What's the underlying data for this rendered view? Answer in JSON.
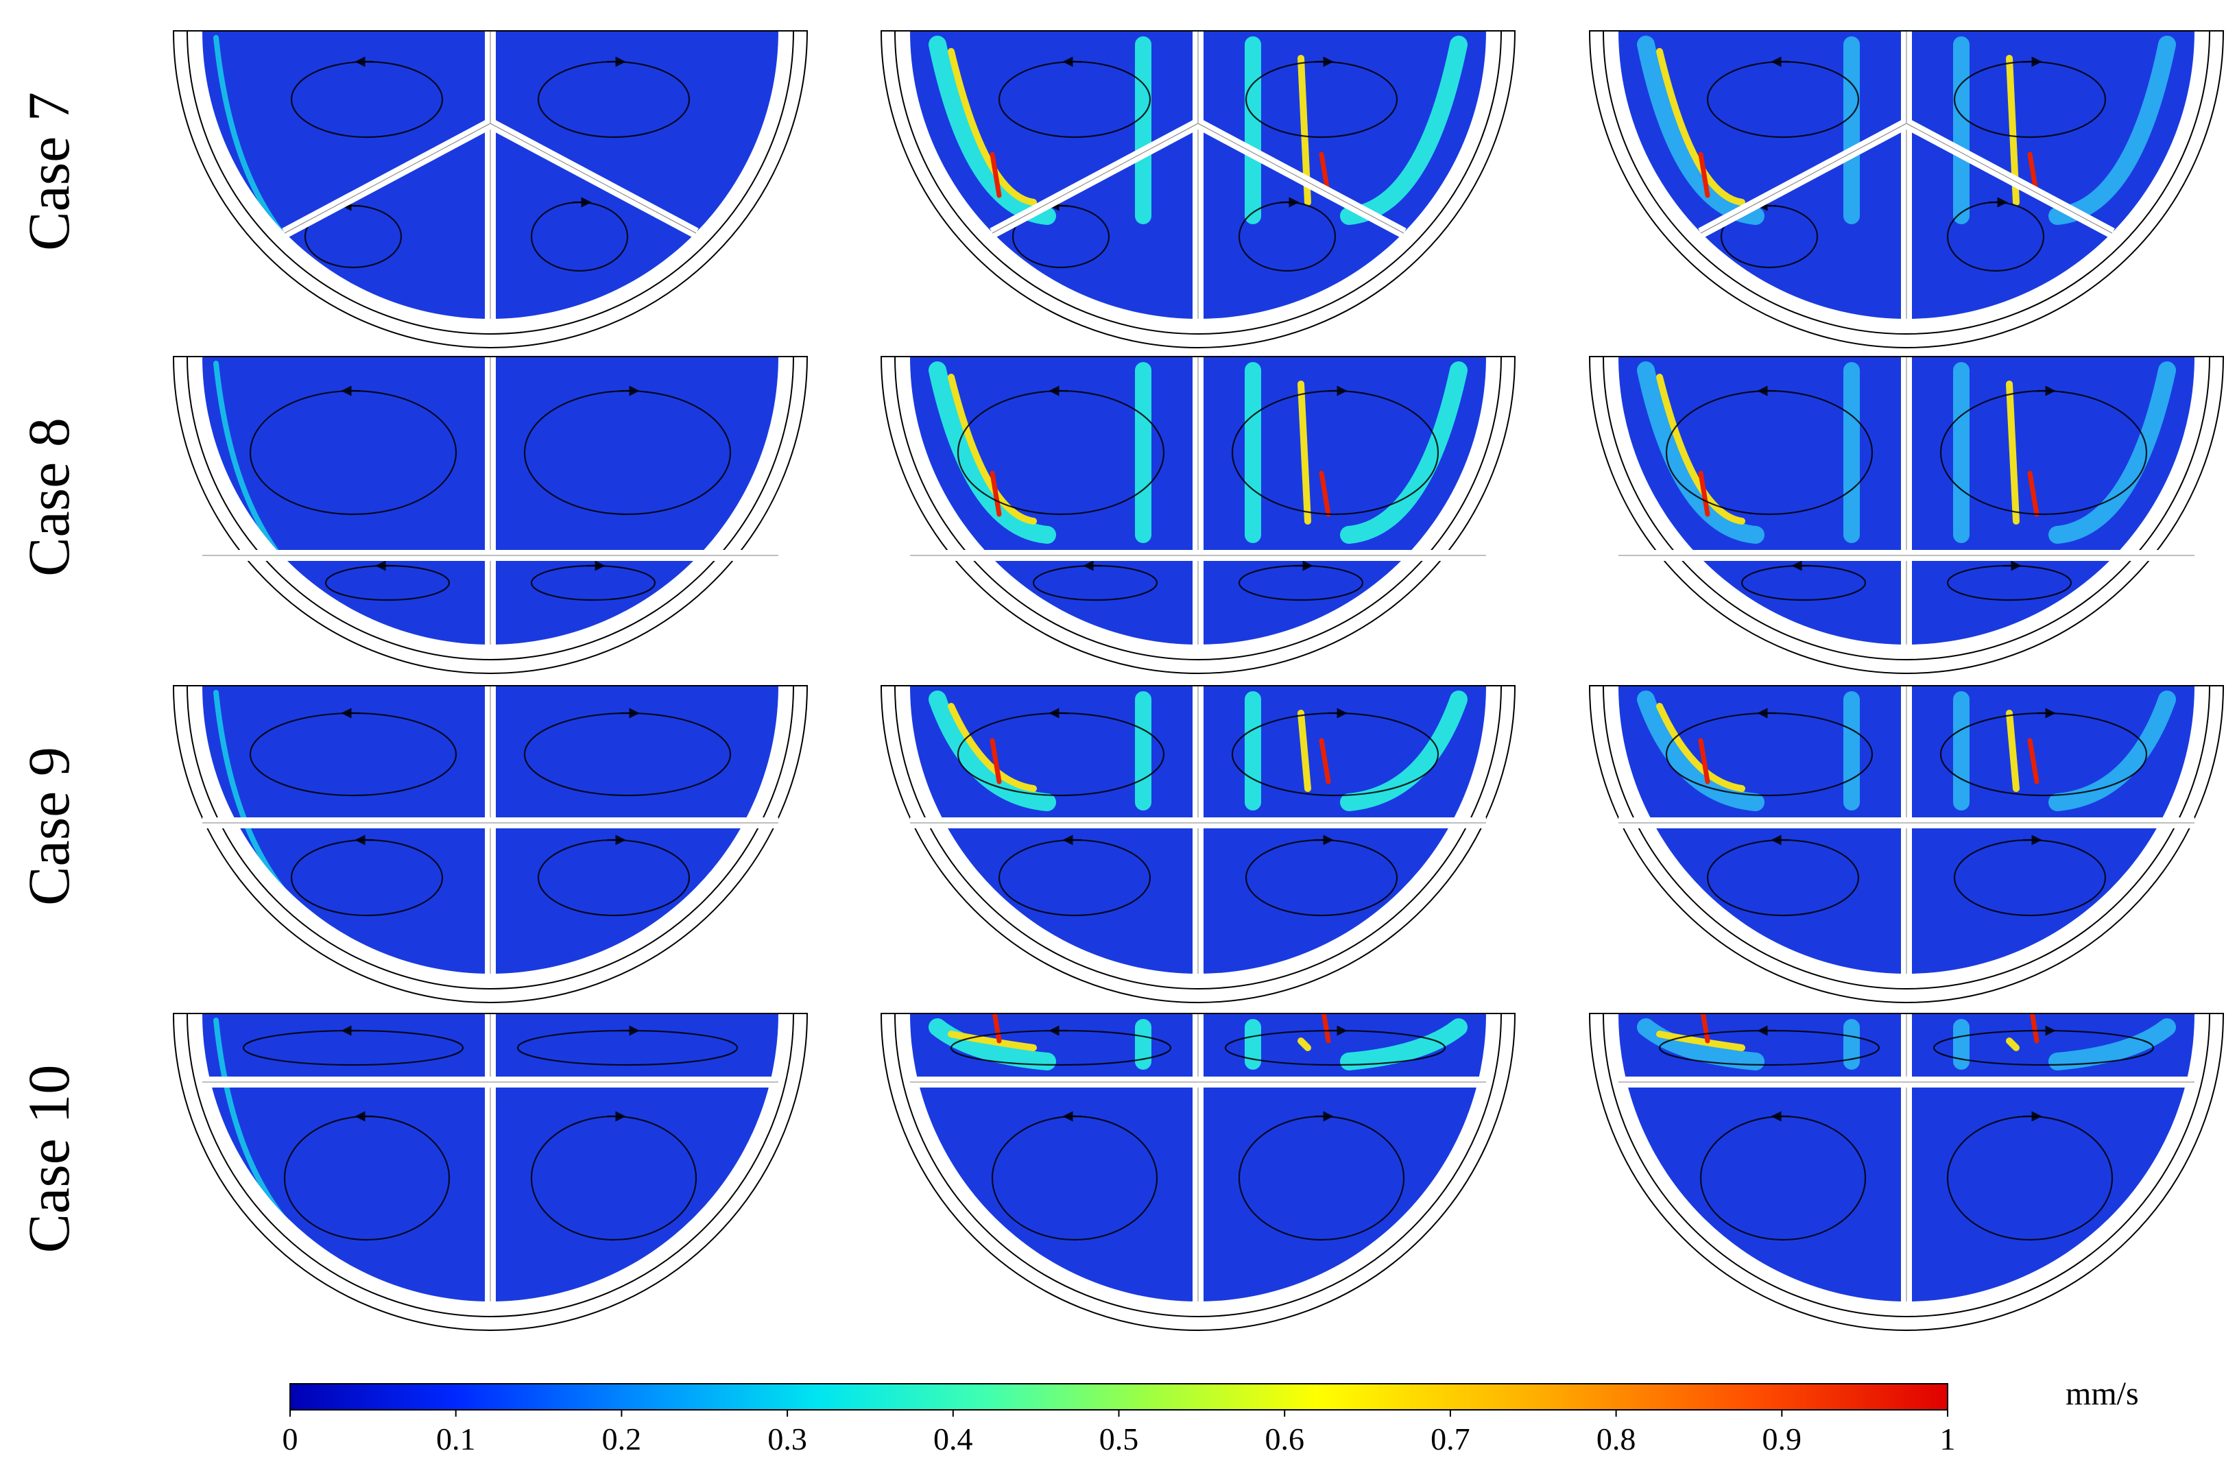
{
  "rows": [
    {
      "label": "Case 7",
      "layout": "radial"
    },
    {
      "label": "Case 8",
      "layout": "hbar-low"
    },
    {
      "label": "Case 9",
      "layout": "hbar-mid"
    },
    {
      "label": "Case 10",
      "layout": "hbar-high"
    }
  ],
  "columns": 3,
  "colorbar": {
    "unit": "mm/s",
    "min": 0,
    "max": 1,
    "ticks": [
      "0",
      "0.1",
      "0.2",
      "0.3",
      "0.4",
      "0.5",
      "0.6",
      "0.7",
      "0.8",
      "0.9",
      "1"
    ],
    "colors": [
      "#0000b4",
      "#0028ff",
      "#0096ff",
      "#00e6f0",
      "#40ffb0",
      "#a0ff40",
      "#ffff00",
      "#ffb000",
      "#ff5000",
      "#e00000"
    ]
  },
  "field_color": "#1a3ae0"
}
